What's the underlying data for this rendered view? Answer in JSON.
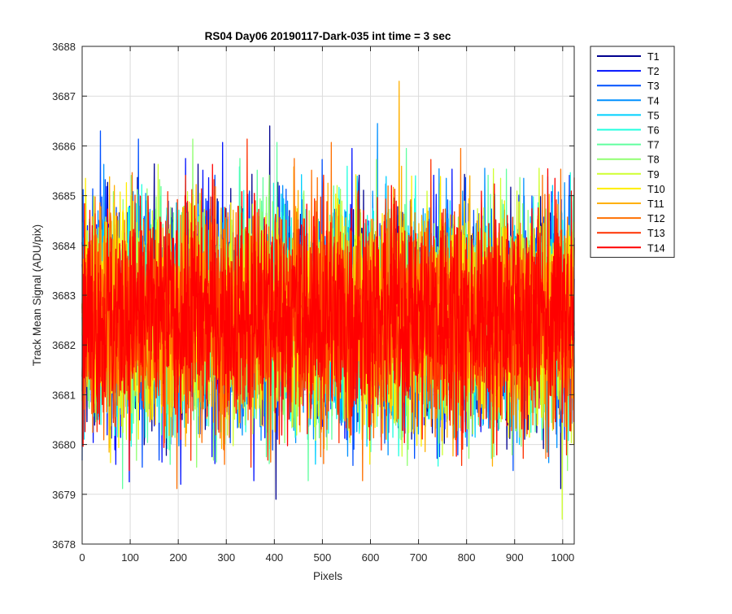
{
  "chart_data": {
    "type": "line",
    "title": "RS04 Day06 20190117-Dark-035 int time = 3 sec",
    "xlabel": "Pixels",
    "ylabel": "Track Mean Signal (ADU/pix)",
    "xlim": [
      0,
      1024
    ],
    "ylim": [
      3678,
      3688
    ],
    "xticks": [
      "0",
      "100",
      "200",
      "300",
      "400",
      "500",
      "600",
      "700",
      "800",
      "900",
      "1000"
    ],
    "yticks": [
      "3678",
      "3679",
      "3680",
      "3681",
      "3682",
      "3683",
      "3684",
      "3685",
      "3686",
      "3687",
      "3688"
    ],
    "grid": true,
    "legend_position": "outside-top-right",
    "n_points_per_series": 1024,
    "series_mean": 3682.6,
    "series_spread": 1.1,
    "series": [
      {
        "name": "T1",
        "color": "#00008f"
      },
      {
        "name": "T2",
        "color": "#0010ff"
      },
      {
        "name": "T3",
        "color": "#0050ff"
      },
      {
        "name": "T4",
        "color": "#0090ff"
      },
      {
        "name": "T5",
        "color": "#00d0ff"
      },
      {
        "name": "T6",
        "color": "#20ffdf"
      },
      {
        "name": "T7",
        "color": "#60ff9f"
      },
      {
        "name": "T8",
        "color": "#90ff70"
      },
      {
        "name": "T9",
        "color": "#cfff30"
      },
      {
        "name": "T10",
        "color": "#ffee00"
      },
      {
        "name": "T11",
        "color": "#ffb000"
      },
      {
        "name": "T12",
        "color": "#ff7000"
      },
      {
        "name": "T13",
        "color": "#ff3000"
      },
      {
        "name": "T14",
        "color": "#ff0000"
      }
    ],
    "highlighted_points": [
      {
        "series": "T3",
        "x": 38,
        "y": 3686.3
      },
      {
        "series": "T2",
        "x": 98,
        "y": 3679.25
      },
      {
        "series": "T2",
        "x": 205,
        "y": 3679.2
      },
      {
        "series": "T1",
        "x": 390,
        "y": 3686.4
      },
      {
        "series": "T1",
        "x": 403,
        "y": 3678.9
      },
      {
        "series": "T4",
        "x": 614,
        "y": 3686.45
      },
      {
        "series": "T11",
        "x": 659,
        "y": 3687.3
      },
      {
        "series": "T9",
        "x": 998,
        "y": 3678.5
      }
    ]
  }
}
